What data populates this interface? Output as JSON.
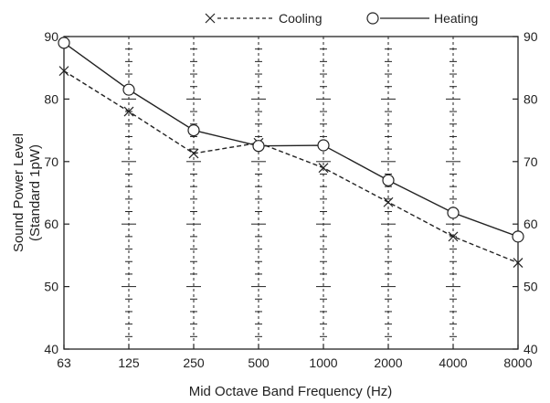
{
  "chart_data": {
    "type": "line",
    "title": "",
    "xlabel": "Mid Octave Band Frequency (Hz)",
    "ylabel_lines": [
      "Sound Power Level",
      "(Standard 1pW)"
    ],
    "categories": [
      "63",
      "125",
      "250",
      "500",
      "1000",
      "2000",
      "4000",
      "8000"
    ],
    "ylim": [
      40,
      90
    ],
    "yticks": [
      40,
      50,
      60,
      70,
      80,
      90
    ],
    "y_tick_labels_right": true,
    "grid": "dashed vertical lines at each category with minor horizontal ticks",
    "legend_position": "top-center",
    "series": [
      {
        "name": "Cooling",
        "marker": "x",
        "line_style": "dashed",
        "color": "#222222",
        "values": [
          84.5,
          78,
          71.3,
          73,
          69,
          63.5,
          58,
          53.8
        ]
      },
      {
        "name": "Heating",
        "marker": "circle",
        "line_style": "solid",
        "color": "#222222",
        "values": [
          89,
          81.5,
          75,
          72.5,
          72.6,
          67,
          61.8,
          58
        ]
      }
    ]
  }
}
